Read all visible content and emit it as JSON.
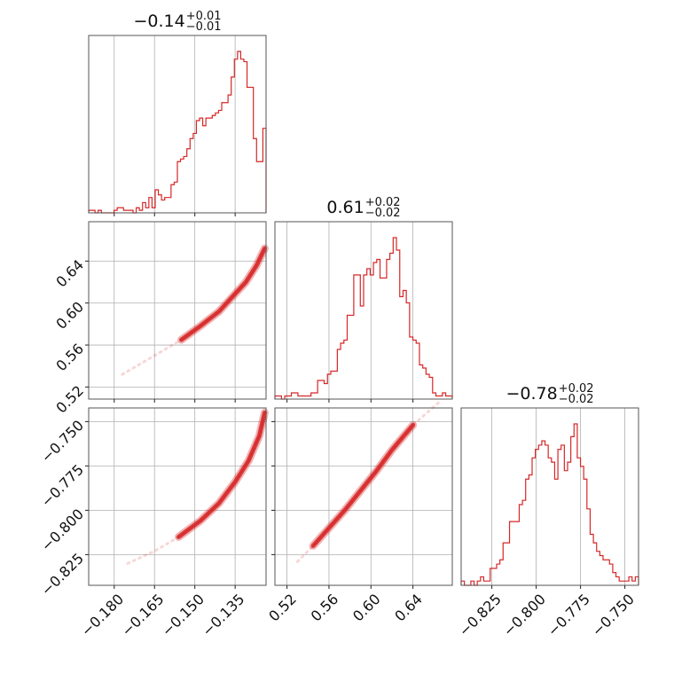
{
  "chart_data": {
    "type": "corner",
    "color": "#d62728",
    "parameters": [
      {
        "title": {
          "median": "−0.14",
          "plus": "+0.01",
          "minus": "−0.01"
        },
        "range": [
          -0.1895,
          -0.1235
        ],
        "ticks": [
          -0.18,
          -0.165,
          -0.15,
          -0.135
        ],
        "tick_labels": [
          "−0.180",
          "−0.165",
          "−0.150",
          "−0.135"
        ]
      },
      {
        "title": {
          "median": "0.61",
          "plus": "+0.02",
          "minus": "−0.02"
        },
        "range": [
          0.5085,
          0.6775
        ],
        "ticks": [
          0.52,
          0.56,
          0.6,
          0.64
        ],
        "tick_labels": [
          "0.52",
          "0.56",
          "0.60",
          "0.64"
        ]
      },
      {
        "title": {
          "median": "−0.78",
          "plus": "+0.02",
          "minus": "−0.02"
        },
        "range": [
          -0.8423,
          -0.7423
        ],
        "ticks": [
          -0.825,
          -0.8,
          -0.775,
          -0.75
        ],
        "tick_labels": [
          "−0.825",
          "−0.800",
          "−0.775",
          "−0.750"
        ]
      }
    ],
    "histograms": [
      {
        "param": 0,
        "range": [
          -0.1895,
          -0.1235
        ],
        "counts": [
          1,
          1,
          0,
          1,
          0,
          0,
          0,
          0,
          1,
          2,
          2,
          1,
          1,
          1,
          0,
          2,
          1,
          4,
          2,
          6,
          2,
          9,
          7,
          5,
          6,
          6,
          11,
          12,
          20,
          21,
          22,
          25,
          29,
          31,
          36,
          37,
          34,
          37,
          37,
          38,
          39,
          40,
          43,
          43,
          46,
          53,
          60,
          63,
          60,
          59,
          49,
          49,
          29,
          20,
          20,
          33
        ]
      },
      {
        "param": 1,
        "range": [
          0.5085,
          0.6775
        ],
        "counts": [
          1,
          1,
          0,
          1,
          1,
          2,
          2,
          1,
          1,
          1,
          1,
          2,
          2,
          6,
          6,
          5,
          8,
          9,
          9,
          16,
          18,
          19,
          27,
          27,
          40,
          40,
          30,
          40,
          42,
          40,
          44,
          45,
          39,
          39,
          45,
          47,
          52,
          48,
          33,
          35,
          31,
          20,
          19,
          18,
          11,
          10,
          8,
          7,
          2,
          1,
          1,
          2,
          1,
          1
        ]
      },
      {
        "param": 2,
        "range": [
          -0.8423,
          -0.7423
        ],
        "counts": [
          1,
          0,
          0,
          1,
          0,
          1,
          2,
          1,
          1,
          4,
          4,
          5,
          6,
          10,
          10,
          15,
          15,
          15,
          19,
          20,
          25,
          26,
          30,
          32,
          33,
          34,
          33,
          30,
          29,
          25,
          32,
          33,
          27,
          29,
          35,
          38,
          30,
          28,
          25,
          18,
          12,
          10,
          8,
          7,
          6,
          6,
          5,
          3,
          2,
          1,
          1,
          1,
          2,
          1,
          2
        ]
      }
    ],
    "joint": [
      {
        "x_param": 0,
        "y_param": 1,
        "x": [
          -0.177,
          -0.165,
          -0.155,
          -0.148,
          -0.141,
          -0.136,
          -0.131,
          -0.127,
          -0.124
        ],
        "y": [
          0.532,
          0.55,
          0.565,
          0.578,
          0.592,
          0.606,
          0.62,
          0.636,
          0.652
        ],
        "core_start": 0.3
      },
      {
        "x_param": 0,
        "y_param": 2,
        "x": [
          -0.175,
          -0.165,
          -0.156,
          -0.148,
          -0.141,
          -0.135,
          -0.13,
          -0.126,
          -0.124
        ],
        "y": [
          -0.83,
          -0.823,
          -0.815,
          -0.806,
          -0.796,
          -0.784,
          -0.772,
          -0.758,
          -0.745
        ],
        "core_start": 0.3
      },
      {
        "x_param": 1,
        "y_param": 2,
        "x": [
          0.53,
          0.545,
          0.56,
          0.575,
          0.59,
          0.605,
          0.62,
          0.64,
          0.665
        ],
        "y": [
          -0.829,
          -0.82,
          -0.81,
          -0.8,
          -0.789,
          -0.778,
          -0.766,
          -0.752,
          -0.739
        ],
        "core_start": 0.2,
        "core_end": 0.8
      }
    ]
  }
}
